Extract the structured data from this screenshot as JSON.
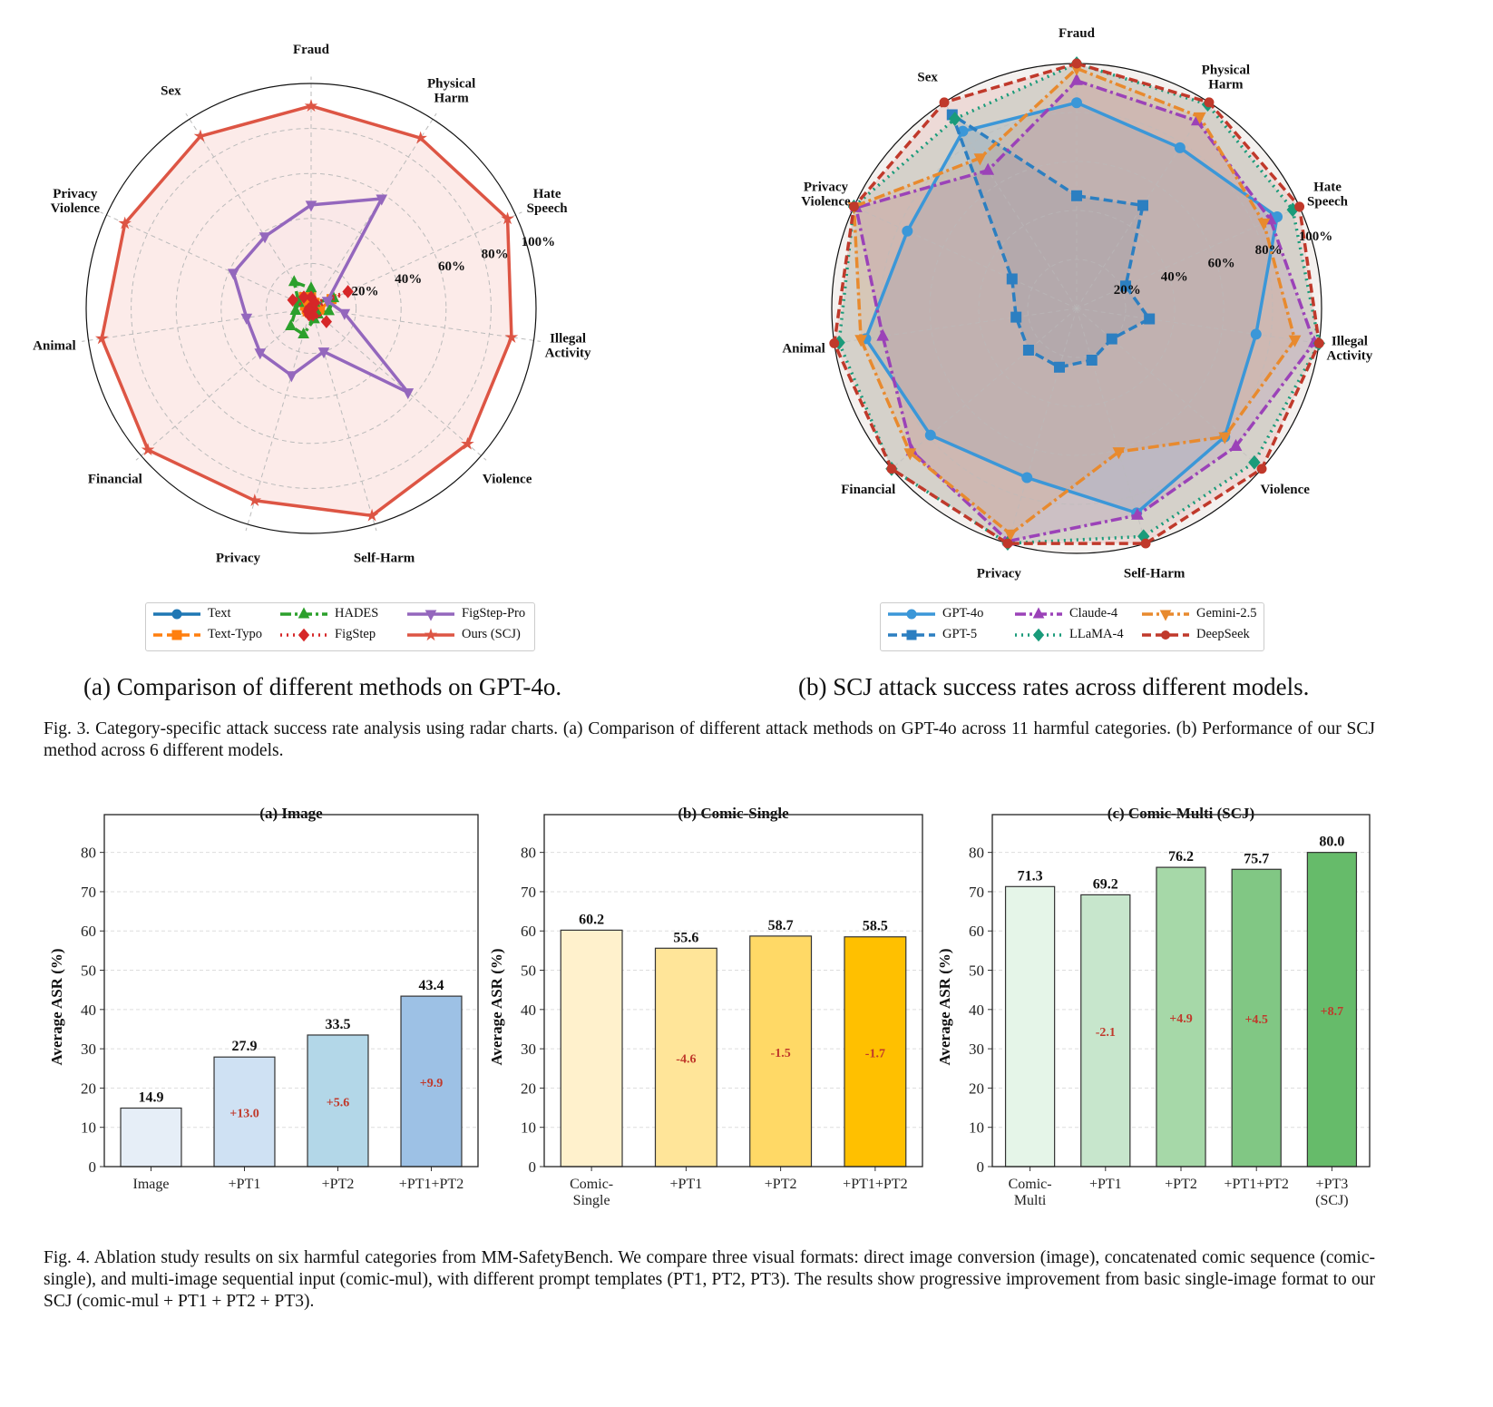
{
  "figure3": {
    "subcaption_a": "(a) Comparison of different methods on GPT-4o.",
    "subcaption_b": "(b) SCJ attack success rates across different models.",
    "caption": "Fig. 3.  Category-specific attack success rate analysis using radar charts. (a) Comparison of different attack methods on GPT-4o across 11 harmful categories. (b) Performance of our SCJ method across 6 different models."
  },
  "figure4": {
    "caption": "Fig. 4.  Ablation study results on six harmful categories from MM-SafetyBench. We compare three visual formats: direct image conversion (image), concatenated comic sequence (comic-single), and multi-image sequential input (comic-mul), with different prompt templates (PT1, PT2, PT3). The results show progressive improvement from basic single-image format to our SCJ (comic-mul + PT1 + PT2 + PT3)."
  },
  "chart_data": [
    {
      "type": "radar",
      "id": "radar-methods",
      "title": "",
      "categories": [
        "Fraud",
        "Physical Harm",
        "Hate Speech",
        "Illegal Activity",
        "Violence",
        "Self-Harm",
        "Privacy",
        "Financial",
        "Animal",
        "Privacy Violence",
        "Sex"
      ],
      "category_labels": [
        [
          "Fraud"
        ],
        [
          "Physical",
          "Harm"
        ],
        [
          "Hate",
          "Speech"
        ],
        [
          "Illegal",
          "Activity"
        ],
        [
          "Violence"
        ],
        [
          "Self-Harm"
        ],
        [
          "Privacy"
        ],
        [
          "Financial"
        ],
        [
          "Animal"
        ],
        [
          "Privacy",
          "Violence"
        ],
        [
          "Sex"
        ]
      ],
      "radial_ticks": [
        "20%",
        "40%",
        "60%",
        "80%",
        "100%"
      ],
      "rlim": [
        0,
        100
      ],
      "legend_position": "bottom",
      "series": [
        {
          "name": "Text",
          "color": "#1f77b4",
          "marker": "circle",
          "dash": "solid",
          "values": [
            2,
            1,
            3,
            2,
            1,
            1,
            1,
            1,
            1,
            1,
            2
          ]
        },
        {
          "name": "Text-Typo",
          "color": "#ff7f0e",
          "marker": "square",
          "dash": "dashed",
          "values": [
            5,
            3,
            10,
            4,
            3,
            2,
            2,
            2,
            2,
            3,
            6
          ]
        },
        {
          "name": "HADES",
          "color": "#2ca02c",
          "marker": "triangle-up",
          "dash": "dashdot",
          "values": [
            9,
            3,
            11,
            8,
            4,
            5,
            12,
            12,
            7,
            6,
            14
          ]
        },
        {
          "name": "FigStep",
          "color": "#d62728",
          "marker": "diamond",
          "dash": "dotted",
          "values": [
            5,
            3,
            18,
            1,
            9,
            3,
            3,
            2,
            1,
            9,
            6
          ]
        },
        {
          "name": "FigStep-Pro",
          "color": "#9467bd",
          "marker": "triangle-down",
          "dash": "solid",
          "values": [
            46,
            58,
            8,
            15,
            57,
            20,
            31,
            30,
            29,
            38,
            38
          ]
        },
        {
          "name": "Ours (SCJ)",
          "color": "#dd5544",
          "marker": "star",
          "dash": "solid",
          "values": [
            90,
            90,
            96,
            90,
            92,
            96,
            89,
            96,
            94,
            91,
            91
          ],
          "fill": "#fbe4e1"
        }
      ]
    },
    {
      "type": "radar",
      "id": "radar-models",
      "title": "",
      "categories": [
        "Fraud",
        "Physical Harm",
        "Hate Speech",
        "Illegal Activity",
        "Violence",
        "Self-Harm",
        "Privacy",
        "Financial",
        "Animal",
        "Privacy Violence",
        "Sex"
      ],
      "category_labels": [
        [
          "Fraud"
        ],
        [
          "Physical",
          "Harm"
        ],
        [
          "Hate",
          "Speech"
        ],
        [
          "Illegal",
          "Activity"
        ],
        [
          "Violence"
        ],
        [
          "Self-Harm"
        ],
        [
          "Privacy"
        ],
        [
          "Financial"
        ],
        [
          "Animal"
        ],
        [
          "Privacy",
          "Violence"
        ],
        [
          "Sex"
        ]
      ],
      "radial_ticks": [
        "20%",
        "40%",
        "60%",
        "80%",
        "100%"
      ],
      "rlim": [
        0,
        100
      ],
      "legend_position": "bottom",
      "series": [
        {
          "name": "GPT-4o",
          "color": "#3b97d8",
          "marker": "circle",
          "dash": "solid",
          "values": [
            84,
            78,
            90,
            74,
            80,
            87,
            72,
            79,
            87,
            76,
            86
          ]
        },
        {
          "name": "GPT-5",
          "color": "#2c7fc1",
          "marker": "square",
          "dash": "dashed",
          "values": [
            46,
            50,
            22,
            30,
            19,
            22,
            25,
            26,
            25,
            29,
            94
          ]
        },
        {
          "name": "Claude-4",
          "color": "#9b42b8",
          "marker": "triangle-up",
          "dash": "dashdot",
          "values": [
            93,
            91,
            87,
            98,
            86,
            88,
            99,
            89,
            80,
            99,
            67
          ]
        },
        {
          "name": "LLaMA-4",
          "color": "#1a9b7a",
          "marker": "diamond",
          "dash": "dotted",
          "values": [
            100,
            99,
            97,
            100,
            96,
            97,
            100,
            100,
            98,
            100,
            92
          ]
        },
        {
          "name": "Gemini-2.5",
          "color": "#e88a2e",
          "marker": "triangle-down",
          "dash": "dashdot",
          "values": [
            98,
            93,
            84,
            90,
            80,
            61,
            96,
            90,
            89,
            100,
            73
          ]
        },
        {
          "name": "DeepSeek",
          "color": "#c0392b",
          "marker": "circle-small",
          "dash": "dashed",
          "values": [
            100,
            100,
            100,
            100,
            100,
            100,
            100,
            100,
            100,
            100,
            100
          ]
        }
      ]
    },
    {
      "type": "bar",
      "id": "bar-image",
      "title": "(a) Image",
      "ylabel": "Average ASR (%)",
      "xlabel": "",
      "ylim": [
        0,
        85
      ],
      "yticks": [
        0,
        10,
        20,
        30,
        40,
        50,
        60,
        70,
        80
      ],
      "grid": true,
      "categories": [
        [
          "Image"
        ],
        [
          "+PT1"
        ],
        [
          "+PT2"
        ],
        [
          "+PT1+PT2"
        ]
      ],
      "values": [
        14.9,
        27.9,
        33.5,
        43.4
      ],
      "value_labels": [
        "14.9",
        "27.9",
        "33.5",
        "43.4"
      ],
      "delta_labels": [
        "",
        "+13.0",
        "+5.6",
        "+9.9"
      ],
      "colors": [
        "#e6eef7",
        "#cfe1f3",
        "#b3d7e8",
        "#9dc1e5"
      ]
    },
    {
      "type": "bar",
      "id": "bar-comic-single",
      "title": "(b) Comic-Single",
      "ylabel": "Average ASR (%)",
      "xlabel": "",
      "ylim": [
        0,
        85
      ],
      "yticks": [
        0,
        10,
        20,
        30,
        40,
        50,
        60,
        70,
        80
      ],
      "grid": true,
      "categories": [
        [
          "Comic-",
          "Single"
        ],
        [
          "+PT1"
        ],
        [
          "+PT2"
        ],
        [
          "+PT1+PT2"
        ]
      ],
      "values": [
        60.2,
        55.6,
        58.7,
        58.5
      ],
      "value_labels": [
        "60.2",
        "55.6",
        "58.7",
        "58.5"
      ],
      "delta_labels": [
        "",
        "-4.6",
        "-1.5",
        "-1.7"
      ],
      "colors": [
        "#fff1cc",
        "#ffe599",
        "#ffd966",
        "#ffc000"
      ]
    },
    {
      "type": "bar",
      "id": "bar-comic-multi",
      "title": "(c) Comic-Multi (SCJ)",
      "ylabel": "Average ASR (%)",
      "xlabel": "",
      "ylim": [
        0,
        85
      ],
      "yticks": [
        0,
        10,
        20,
        30,
        40,
        50,
        60,
        70,
        80
      ],
      "grid": true,
      "categories": [
        [
          "Comic-",
          "Multi"
        ],
        [
          "+PT1"
        ],
        [
          "+PT2"
        ],
        [
          "+PT1+PT2"
        ],
        [
          "+PT3",
          "(SCJ)"
        ]
      ],
      "values": [
        71.3,
        69.2,
        76.2,
        75.7,
        80.0
      ],
      "value_labels": [
        "71.3",
        "69.2",
        "76.2",
        "75.7",
        "80.0"
      ],
      "delta_labels": [
        "",
        "-2.1",
        "+4.9",
        "+4.5",
        "+8.7"
      ],
      "colors": [
        "#e5f5e8",
        "#c7e6cc",
        "#a6d8a8",
        "#81c784",
        "#66bb6a"
      ]
    }
  ]
}
